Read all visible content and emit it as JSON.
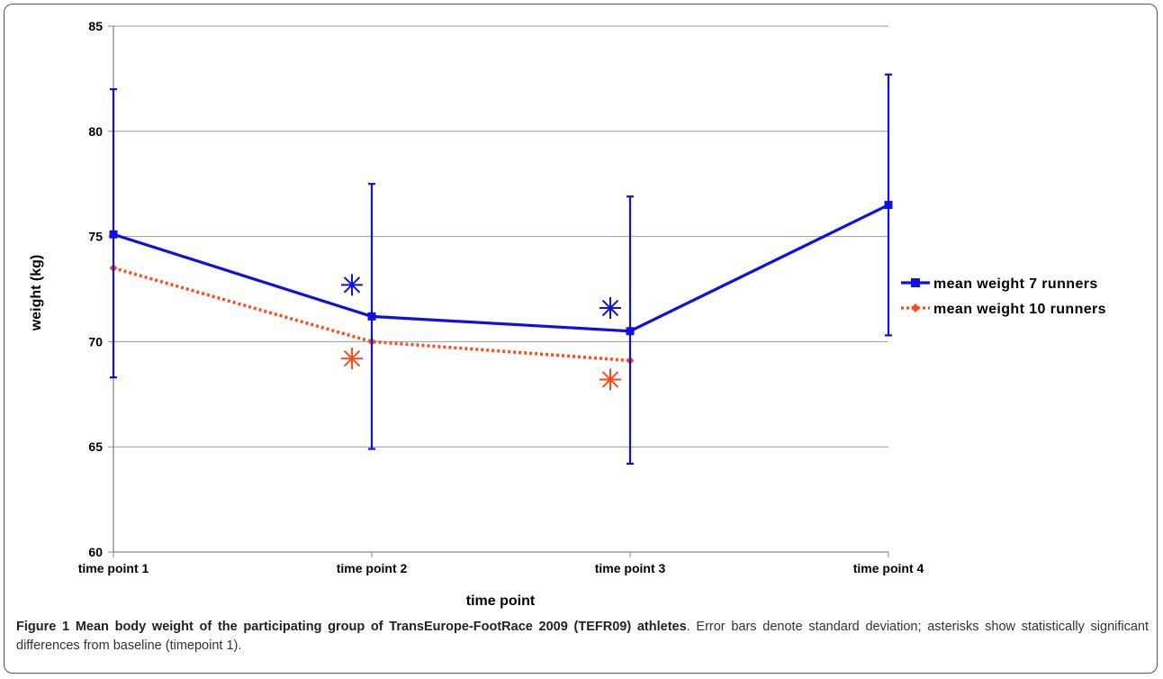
{
  "chart_data": {
    "type": "line",
    "ylabel": "weight (kg)",
    "xlabel": "time point",
    "ylim": [
      60,
      85
    ],
    "yticks": [
      "60",
      "65",
      "70",
      "75",
      "80",
      "85"
    ],
    "categories": [
      "time point 1",
      "time point 2",
      "time point 3",
      "time point 4"
    ],
    "grid": "horizontal",
    "legend": "right",
    "series": [
      {
        "name": "mean weight 7 runners",
        "color": "#1010e0",
        "line": "solid",
        "marker": "square",
        "values": [
          75.1,
          71.2,
          70.5,
          76.5
        ],
        "error_low": [
          68.3,
          64.9,
          64.2,
          70.3
        ],
        "error_high": [
          82.0,
          77.5,
          76.9,
          82.7
        ],
        "significant_at": [
          1,
          2
        ],
        "asterisk_values": [
          72.7,
          71.6
        ]
      },
      {
        "name": "mean weight 10 runners",
        "color": "#ff4a1a",
        "line": "dotted",
        "marker": "diamond",
        "values": [
          73.5,
          70.0,
          69.1,
          null
        ],
        "significant_at": [
          1,
          2
        ],
        "asterisk_values": [
          69.2,
          68.2
        ]
      }
    ]
  },
  "caption": {
    "label": "Figure 1",
    "title": "Mean body weight of the participating group of TransEurope-FootRace 2009 (TEFR09) athletes",
    "text": ". Error bars denote standard deviation; asterisks show statistically significant differences from baseline (timepoint 1)."
  }
}
